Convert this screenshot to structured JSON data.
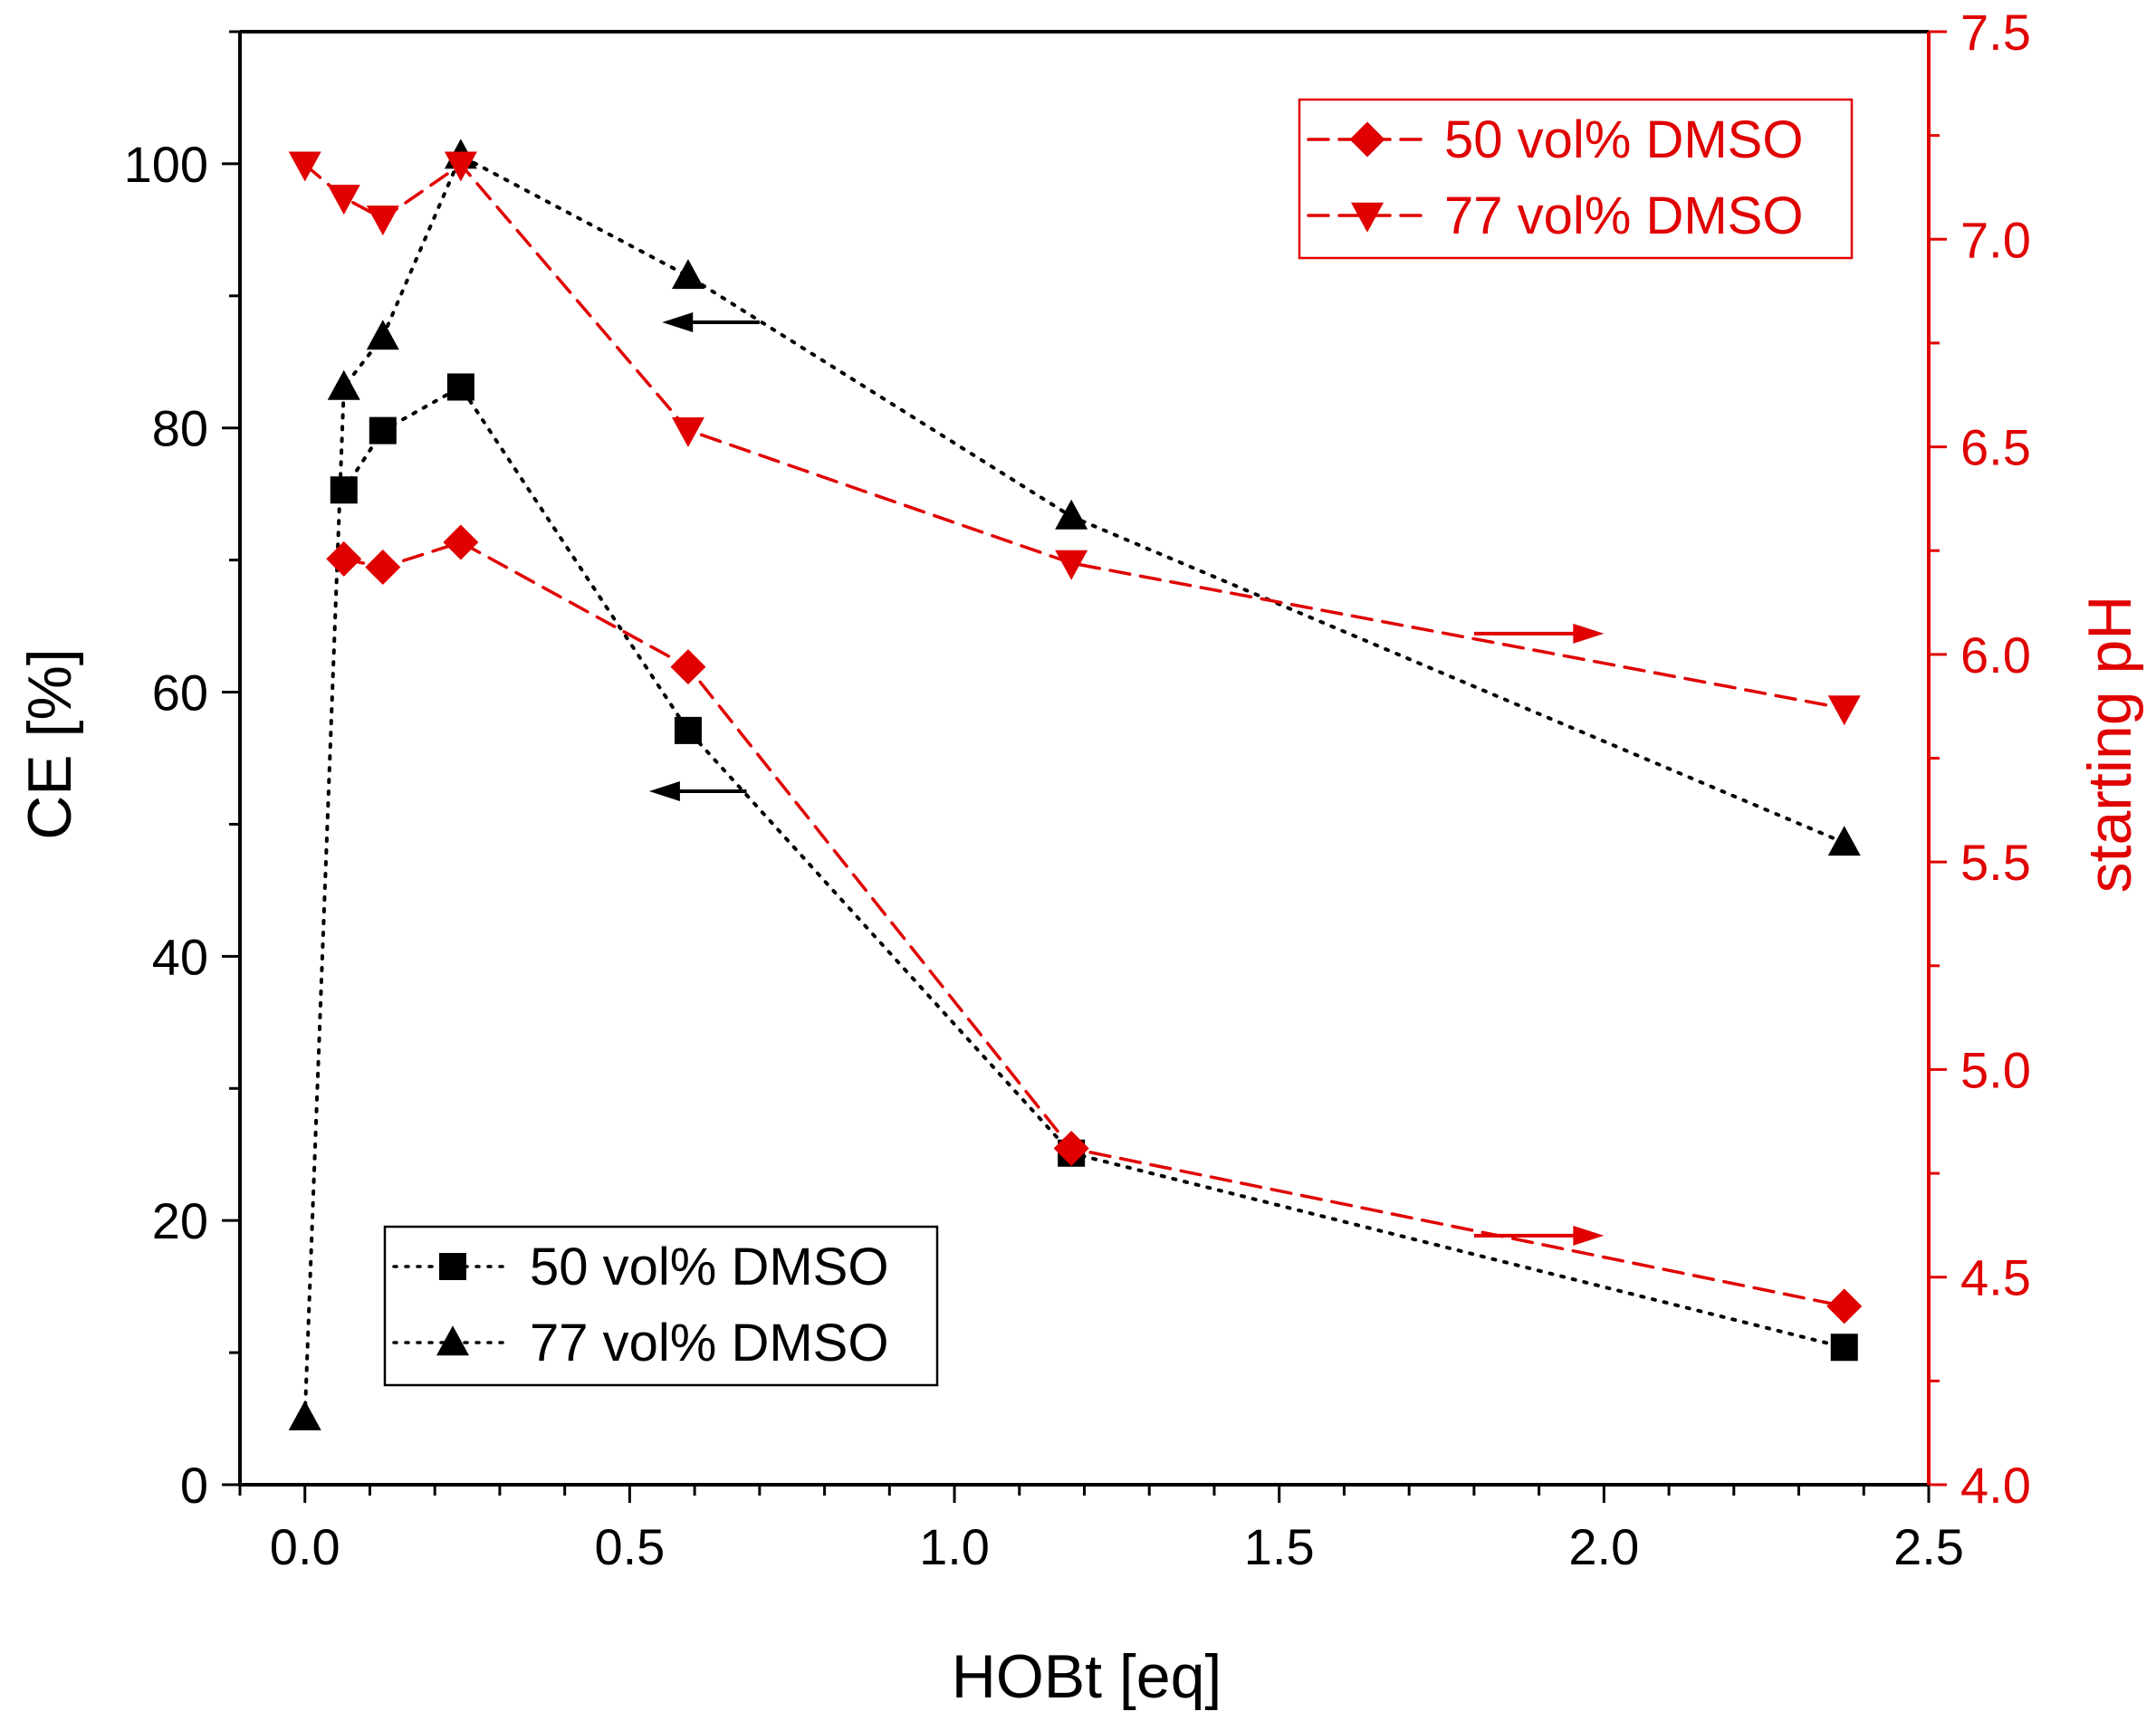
{
  "colors": {
    "left_axis": "#000000",
    "right_axis": "#e00000"
  },
  "chart_data": {
    "type": "scatter-line",
    "title": "",
    "xlabel": "HOBt [eq]",
    "ylabel_left": "CE [%]",
    "ylabel_right": "starting pH",
    "xlim": [
      -0.1,
      2.5
    ],
    "ylim_left": [
      0,
      110
    ],
    "ylim_right": [
      4.0,
      7.5
    ],
    "x_ticks": [
      0.0,
      0.5,
      1.0,
      1.5,
      2.0,
      2.5
    ],
    "x_tick_labels": [
      "0.0",
      "0.5",
      "1.0",
      "1.5",
      "2.0",
      "2.5"
    ],
    "y_left_ticks": [
      0,
      20,
      40,
      60,
      80,
      100
    ],
    "y_left_tick_labels": [
      "0",
      "20",
      "40",
      "60",
      "80",
      "100"
    ],
    "y_right_ticks": [
      4.0,
      4.5,
      5.0,
      5.5,
      6.0,
      6.5,
      7.0,
      7.5
    ],
    "y_right_tick_labels": [
      "4.0",
      "4.5",
      "5.0",
      "5.5",
      "6.0",
      "6.5",
      "7.0",
      "7.5"
    ],
    "series": [
      {
        "name": "50 vol% DMSO",
        "axis": "left",
        "marker": "square",
        "line": "dotted",
        "color": "#000000",
        "x": [
          0.06,
          0.12,
          0.24,
          0.59,
          1.18,
          2.37
        ],
        "y": [
          75.3,
          79.8,
          83.1,
          57.1,
          25.1,
          10.4
        ]
      },
      {
        "name": "77 vol% DMSO",
        "axis": "left",
        "marker": "triangle-up",
        "line": "dotted",
        "color": "#000000",
        "x": [
          0.0,
          0.06,
          0.12,
          0.24,
          0.59,
          1.18,
          2.37
        ],
        "y": [
          5.1,
          83.1,
          86.9,
          100.6,
          91.5,
          73.3,
          48.6
        ]
      },
      {
        "name": "50 vol% DMSO",
        "axis": "right",
        "marker": "diamond",
        "line": "dashed",
        "color": "#e00000",
        "x": [
          0.06,
          0.12,
          0.24,
          0.59,
          1.18,
          2.37
        ],
        "y": [
          6.23,
          6.21,
          6.27,
          5.97,
          4.81,
          4.43
        ]
      },
      {
        "name": "77 vol% DMSO",
        "axis": "right",
        "marker": "triangle-down",
        "line": "dashed",
        "color": "#e00000",
        "x": [
          0.0,
          0.06,
          0.12,
          0.24,
          0.59,
          1.18,
          2.37
        ],
        "y": [
          7.18,
          7.1,
          7.05,
          7.18,
          6.54,
          6.22,
          5.87
        ]
      }
    ],
    "legends": [
      {
        "location": "top-right",
        "axis": "right",
        "entries": [
          "50 vol% DMSO",
          "77 vol% DMSO"
        ]
      },
      {
        "location": "bottom-left",
        "axis": "left",
        "entries": [
          "50 vol% DMSO",
          "77 vol% DMSO"
        ]
      }
    ],
    "annotations": [
      {
        "type": "arrow",
        "direction": "left",
        "axis": "left",
        "series": "77 vol% DMSO",
        "x_from": 0.7,
        "x_to": 0.55,
        "y": 88
      },
      {
        "type": "arrow",
        "direction": "left",
        "axis": "left",
        "series": "50 vol% DMSO",
        "x_from": 0.68,
        "x_to": 0.53,
        "y": 52.5
      },
      {
        "type": "arrow",
        "direction": "right",
        "axis": "right",
        "series": "77 vol% DMSO",
        "x_from": 1.8,
        "x_to": 2.0,
        "y": 6.05
      },
      {
        "type": "arrow",
        "direction": "right",
        "axis": "right",
        "series": "50 vol% DMSO",
        "x_from": 1.8,
        "x_to": 2.0,
        "y": 4.6
      }
    ]
  }
}
